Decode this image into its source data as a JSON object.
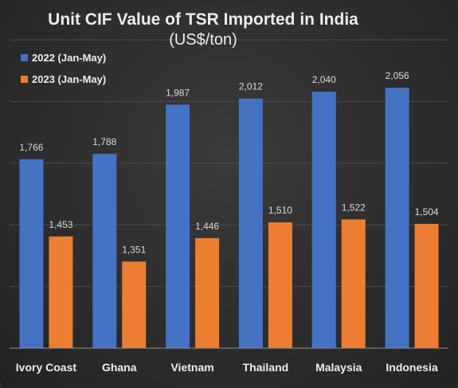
{
  "chart_data": {
    "type": "bar",
    "title": "Unit CIF Value of TSR Imported in India",
    "subtitle": "(US$/ton)",
    "xlabel": "",
    "ylabel": "",
    "categories": [
      "Ivory Coast",
      "Ghana",
      "Vietnam",
      "Thailand",
      "Malaysia",
      "Indonesia"
    ],
    "series": [
      {
        "name": "2022 (Jan-May)",
        "color": "#4472c4",
        "values": [
          1766,
          1788,
          1987,
          2012,
          2040,
          2056
        ],
        "labels": [
          "1,766",
          "1,788",
          "1,987",
          "2,012",
          "2,040",
          "2,056"
        ]
      },
      {
        "name": "2023 (Jan-May)",
        "color": "#ed7d31",
        "values": [
          1453,
          1351,
          1446,
          1510,
          1522,
          1504
        ],
        "labels": [
          "1,453",
          "1,351",
          "1,446",
          "1,510",
          "1,522",
          "1,504"
        ]
      }
    ],
    "ylim": [
      1000,
      2250
    ],
    "y_gridlines": [
      1000,
      1250,
      1500,
      1750,
      2000,
      2250
    ],
    "grid": true,
    "legend_position": "top-left"
  }
}
